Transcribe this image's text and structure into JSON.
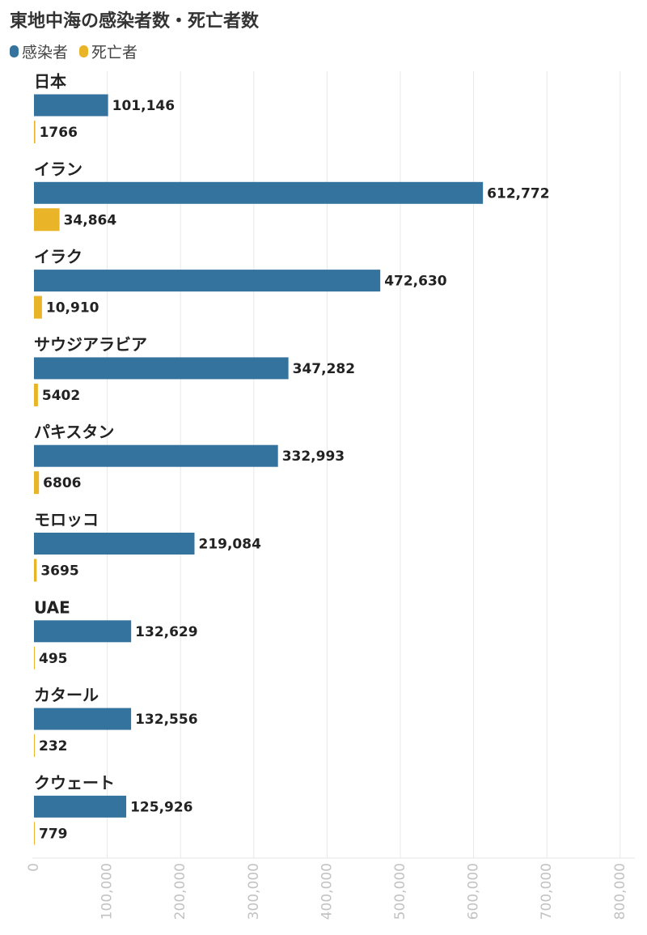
{
  "chart_data": {
    "type": "bar",
    "orientation": "horizontal",
    "title": "東地中海の感染者数・死亡者数",
    "categories": [
      "日本",
      "イラン",
      "イラク",
      "サウジアラビア",
      "パキスタン",
      "モロッコ",
      "UAE",
      "カタール",
      "クウェート"
    ],
    "series": [
      {
        "name": "感染者",
        "color": "#34739e",
        "values": [
          101146,
          612772,
          472630,
          347282,
          332993,
          219084,
          132629,
          132556,
          125926
        ],
        "labels": [
          "101,146",
          "612,772",
          "472,630",
          "347,282",
          "332,993",
          "219,084",
          "132,629",
          "132,556",
          "125,926"
        ]
      },
      {
        "name": "死亡者",
        "color": "#eab428",
        "values": [
          1766,
          34864,
          10910,
          5402,
          6806,
          3695,
          495,
          232,
          779
        ],
        "labels": [
          "1766",
          "34,864",
          "10,910",
          "5402",
          "6806",
          "3695",
          "495",
          "232",
          "779"
        ]
      }
    ],
    "xlim": [
      0,
      800000
    ],
    "ticks": [
      0,
      100000,
      200000,
      300000,
      400000,
      500000,
      600000,
      700000,
      800000
    ],
    "tick_labels": [
      "0",
      "100,000",
      "200,000",
      "300,000",
      "400,000",
      "500,000",
      "600,000",
      "700,000",
      "800,000"
    ],
    "grid": true,
    "legend_position": "top-left"
  }
}
